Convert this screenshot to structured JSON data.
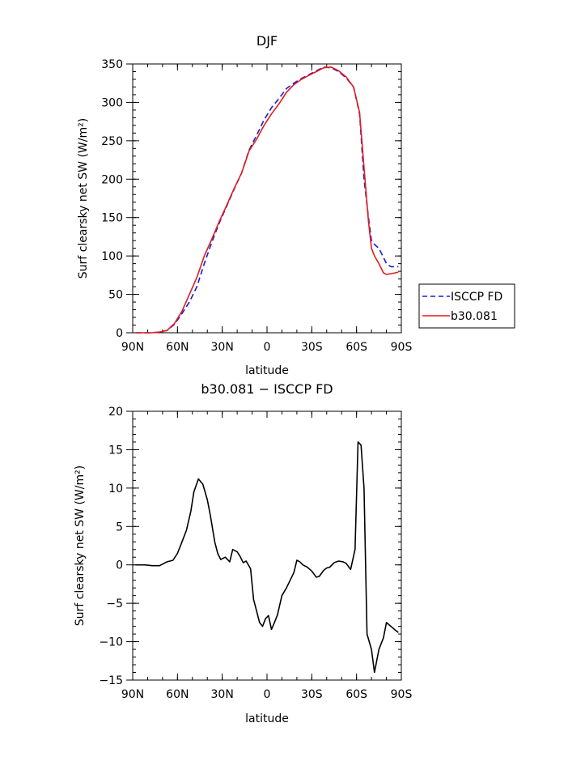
{
  "chart_data": [
    {
      "type": "line",
      "title": "DJF",
      "xlabel": "latitude",
      "ylabel": "Surf clearsky net SW (W/m²)",
      "xlim": [
        90,
        -90
      ],
      "ylim": [
        0,
        350
      ],
      "xticks": [
        90,
        60,
        30,
        0,
        -30,
        -60,
        -90
      ],
      "xtick_labels": [
        "90N",
        "60N",
        "30N",
        "0",
        "30S",
        "60S",
        "90S"
      ],
      "yticks": [
        0,
        50,
        100,
        150,
        200,
        250,
        300,
        350
      ],
      "ytick_labels": [
        "0",
        "50",
        "100",
        "150",
        "200",
        "250",
        "300",
        "350"
      ],
      "legend_position": "right",
      "series": [
        {
          "name": "ISCCP FD",
          "color": "#1a1adb",
          "style": "dashed",
          "x": [
            88,
            82,
            77,
            72,
            67,
            62,
            57,
            52,
            47,
            42,
            37,
            32,
            27,
            22,
            17,
            12,
            7,
            2,
            -3,
            -8,
            -13,
            -18,
            -23,
            -28,
            -33,
            -38,
            -43,
            -48,
            -53,
            -58,
            -62,
            -65,
            -68,
            -70,
            -72,
            -75,
            -78,
            -80,
            -83,
            -86,
            -88
          ],
          "y": [
            0,
            0,
            0,
            1,
            3,
            11,
            25,
            40,
            60,
            90,
            118,
            143,
            165,
            187,
            208,
            238,
            257,
            277,
            293,
            305,
            318,
            325,
            331,
            336,
            341,
            346,
            345,
            340,
            332,
            320,
            285,
            200,
            150,
            120,
            115,
            110,
            98,
            90,
            86,
            86,
            86
          ]
        },
        {
          "name": "b30.081",
          "color": "#e21b1b",
          "style": "solid",
          "x": [
            88,
            82,
            77,
            72,
            67,
            62,
            57,
            52,
            47,
            42,
            37,
            32,
            27,
            22,
            17,
            12,
            7,
            2,
            -3,
            -8,
            -13,
            -18,
            -23,
            -28,
            -33,
            -38,
            -43,
            -48,
            -53,
            -58,
            -62,
            -65,
            -68,
            -70,
            -72,
            -75,
            -78,
            -80,
            -83,
            -86,
            -88
          ],
          "y": [
            0,
            0,
            0,
            1,
            3,
            12,
            28,
            50,
            72,
            100,
            122,
            145,
            166,
            188,
            208,
            237,
            252,
            270,
            285,
            298,
            313,
            323,
            330,
            335,
            340,
            345,
            346,
            341,
            333,
            320,
            287,
            215,
            145,
            110,
            100,
            90,
            78,
            76,
            77,
            78,
            79
          ]
        }
      ]
    },
    {
      "type": "line",
      "title": "b30.081 − ISCCP FD",
      "xlabel": "latitude",
      "ylabel": "Surf clearsky net SW (W/m²)",
      "xlim": [
        90,
        -90
      ],
      "ylim": [
        -15,
        20
      ],
      "xticks": [
        90,
        60,
        30,
        0,
        -30,
        -60,
        -90
      ],
      "xtick_labels": [
        "90N",
        "60N",
        "30N",
        "0",
        "30S",
        "60S",
        "90S"
      ],
      "yticks": [
        -15,
        -10,
        -5,
        0,
        5,
        10,
        15,
        20
      ],
      "ytick_labels": [
        "−15",
        "−10",
        "−5",
        "0",
        "5",
        "10",
        "15",
        "20"
      ],
      "series": [
        {
          "color": "#000000",
          "style": "solid",
          "x": [
            88,
            82,
            77,
            72,
            67,
            65,
            63,
            60,
            57,
            54,
            51,
            49,
            46,
            43,
            40,
            38,
            35,
            33,
            31,
            28,
            25,
            23,
            20,
            18,
            16,
            14,
            11,
            9,
            7,
            5,
            3,
            1,
            -1,
            -3,
            -5,
            -7,
            -10,
            -13,
            -16,
            -18,
            -20,
            -22,
            -24,
            -27,
            -30,
            -33,
            -35,
            -38,
            -40,
            -42,
            -45,
            -48,
            -51,
            -53,
            -56,
            -59,
            -61,
            -63,
            -65,
            -67,
            -70,
            -72,
            -75,
            -78,
            -80,
            -83,
            -86,
            -88
          ],
          "y": [
            0,
            0,
            -0.1,
            -0.1,
            0.4,
            0.5,
            0.6,
            1.5,
            3,
            4.5,
            7,
            9.5,
            11.2,
            10.5,
            8.5,
            6.5,
            3,
            1.5,
            0.7,
            1,
            0.4,
            2,
            1.7,
            1.1,
            0.3,
            0.5,
            -0.5,
            -4.5,
            -6,
            -7.5,
            -8,
            -7,
            -6.6,
            -8.4,
            -7.5,
            -6.5,
            -4,
            -3,
            -1.8,
            -1,
            0.6,
            0.4,
            0,
            -0.3,
            -0.8,
            -1.6,
            -1.5,
            -0.7,
            -0.4,
            -0.3,
            0.3,
            0.5,
            0.4,
            0.2,
            -0.6,
            2,
            16,
            15.6,
            10,
            -9,
            -11,
            -14,
            -11,
            -9.5,
            -7.5,
            -8,
            -8.5,
            -8.8
          ]
        }
      ]
    }
  ]
}
